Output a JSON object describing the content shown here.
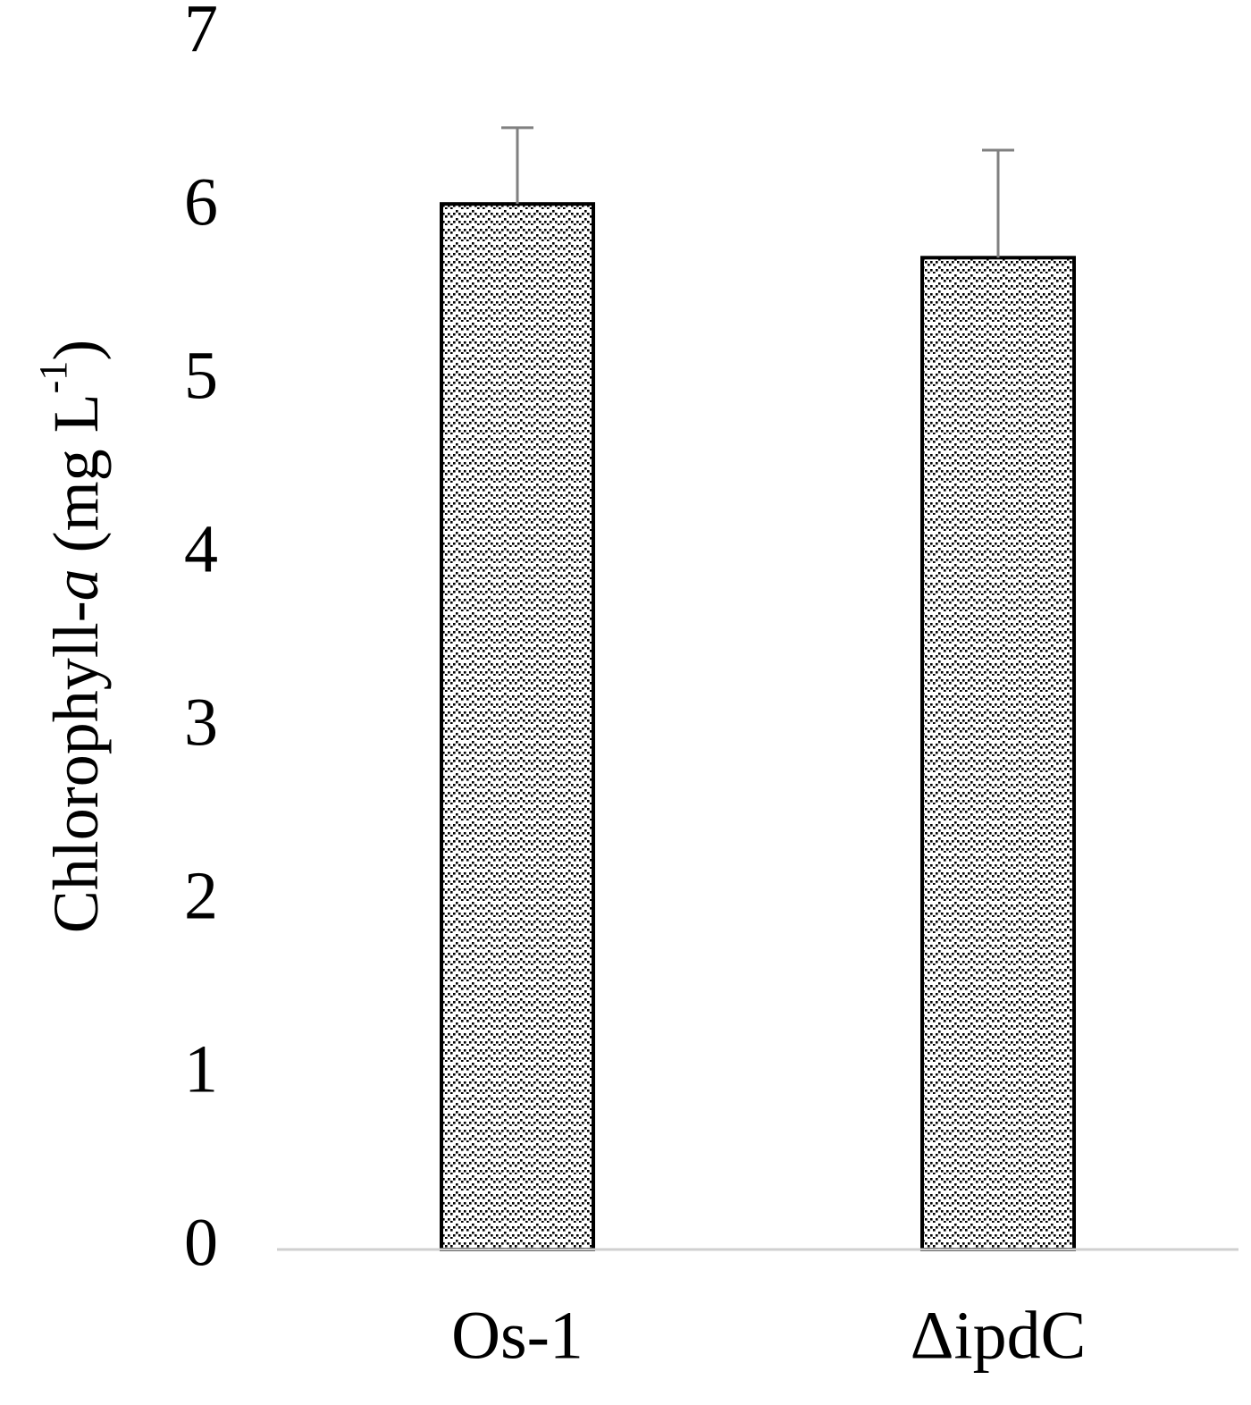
{
  "chart_data": {
    "type": "bar",
    "categories": [
      "Os-1",
      "ΔipdC"
    ],
    "values": [
      6.03,
      5.72
    ],
    "error_bars": [
      0.44,
      0.62
    ],
    "ylabel": {
      "main": "Chlorophyll-",
      "italic": "a",
      "unit_open": " (mg L",
      "superscript": "-1",
      "unit_close": ")"
    },
    "xlabel": "",
    "ylim": [
      0,
      7
    ],
    "yticks": [
      "0",
      "1",
      "2",
      "3",
      "4",
      "5",
      "6",
      "7"
    ],
    "grid": false,
    "legend": "none",
    "bar_fill": "zigzag dotted pattern",
    "bar_stroke": "#000000",
    "error_bar_color": "#808080",
    "axis_color": "#d0d0d0"
  }
}
